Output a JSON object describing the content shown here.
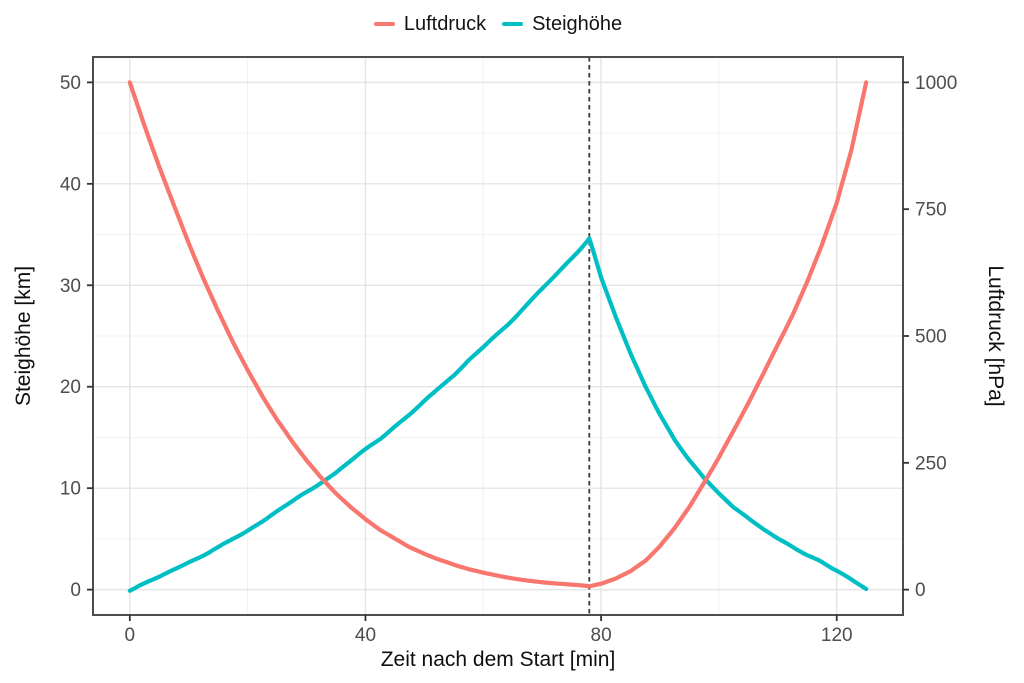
{
  "legend": {
    "items": [
      {
        "label": "Luftdruck",
        "color": "#F8766D"
      },
      {
        "label": "Steighöhe",
        "color": "#00BFC4"
      }
    ]
  },
  "axes": {
    "x": {
      "title": "Zeit nach dem Start [min]",
      "ticks": [
        0,
        40,
        80,
        120
      ],
      "minor_ticks": [
        20,
        60,
        100
      ],
      "range": [
        0,
        125
      ]
    },
    "y_left": {
      "title": "Steighöhe [km]",
      "ticks": [
        0,
        10,
        20,
        30,
        40,
        50
      ],
      "minor_ticks": [
        5,
        15,
        25,
        35,
        45
      ],
      "range": [
        0,
        50
      ]
    },
    "y_right": {
      "title": "Luftdruck [hPa]",
      "ticks": [
        0,
        250,
        500,
        750,
        1000
      ],
      "range": [
        0,
        1000
      ]
    }
  },
  "chart_data": {
    "type": "line",
    "title": "",
    "xlabel": "Zeit nach dem Start [min]",
    "ylabel_left": "Steighöhe [km]",
    "ylabel_right": "Luftdruck [hPa]",
    "xlim": [
      0,
      125
    ],
    "ylim_left": [
      0,
      50
    ],
    "ylim_right": [
      0,
      1000
    ],
    "grid": true,
    "legend_position": "top-center",
    "x": [
      0,
      2.5,
      5,
      7.5,
      10,
      12.5,
      15,
      17.5,
      20,
      22.5,
      25,
      27.5,
      30,
      32.5,
      35,
      37.5,
      40,
      42.5,
      45,
      47.5,
      50,
      52.5,
      55,
      57.5,
      60,
      62.5,
      65,
      67.5,
      70,
      72.5,
      75,
      77.5,
      78,
      80,
      82.5,
      85,
      87.5,
      90,
      92.5,
      95,
      97.5,
      100,
      102.5,
      105,
      107.5,
      110,
      112.5,
      115,
      117.5,
      120,
      122.5,
      125
    ],
    "series": [
      {
        "name": "Luftdruck",
        "unit": "hPa",
        "axis": "right",
        "color": "#F8766D",
        "values": [
          1000,
          915,
          834,
          757,
          683,
          613,
          549,
          488,
          433,
          382,
          335,
          293,
          255,
          221,
          190,
          163,
          139,
          118,
          100,
          84,
          71,
          59,
          49,
          40,
          33,
          27,
          22,
          18,
          15,
          12,
          9.5,
          7.5,
          7,
          12,
          22,
          36,
          57,
          86,
          121,
          163,
          211,
          261,
          314,
          368,
          424,
          483,
          541,
          607,
          680,
          762,
          867,
          1000
        ]
      },
      {
        "name": "Steighöhe",
        "unit": "km",
        "axis": "left",
        "color": "#00BFC4",
        "values": [
          0,
          0.6,
          1.3,
          2,
          2.7,
          3.4,
          4.2,
          5,
          5.9,
          6.7,
          7.7,
          8.6,
          9.6,
          10.6,
          11.6,
          12.7,
          13.8,
          14.9,
          16.1,
          17.3,
          18.6,
          19.8,
          21.1,
          22.5,
          23.8,
          25.2,
          26.6,
          28.1,
          29.6,
          31.1,
          32.7,
          34.3,
          34.6,
          30.8,
          26.8,
          23.2,
          20,
          17.2,
          14.8,
          12.7,
          10.9,
          9.4,
          8.1,
          7,
          6,
          5.1,
          4.3,
          3.5,
          2.7,
          1.9,
          1,
          0
        ]
      }
    ],
    "annotations": [
      {
        "type": "vline",
        "x": 78,
        "style": "dashed",
        "color": "#3a3a3a"
      }
    ]
  },
  "style_colors": {
    "grid_major": "#e4e4e4",
    "grid_minor": "#f0f0f0",
    "panel_border": "#4d4d4d",
    "tick_mark": "#333333",
    "tick_label": "#4d4d4d"
  }
}
